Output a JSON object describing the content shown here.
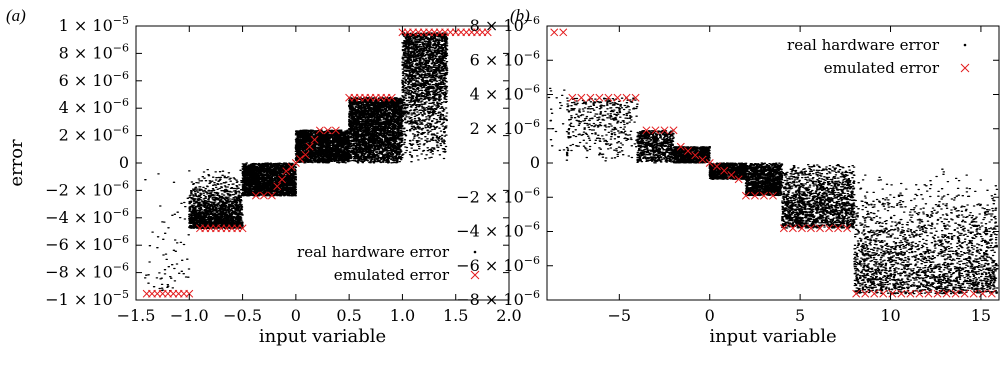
{
  "panels": [
    {
      "label": "(a)"
    },
    {
      "label": "(b)"
    }
  ],
  "chart_data": [
    {
      "type": "scatter",
      "panel": "(a)",
      "xlabel": "input variable",
      "ylabel": "error",
      "xlim": [
        -1.5,
        2.0
      ],
      "ylim": [
        -1e-05,
        1e-05
      ],
      "xticks": [
        {
          "v": -1.5,
          "label": "−1.5"
        },
        {
          "v": -1.0,
          "label": "−1.0"
        },
        {
          "v": -0.5,
          "label": "−0.5"
        },
        {
          "v": 0,
          "label": "0"
        },
        {
          "v": 0.5,
          "label": "0.5"
        },
        {
          "v": 1.0,
          "label": "1.0"
        },
        {
          "v": 1.5,
          "label": "1.5"
        },
        {
          "v": 2.0,
          "label": "2.0"
        }
      ],
      "yticks": [
        {
          "v": 1e-05,
          "mant": "1",
          "exp": "−5"
        },
        {
          "v": 8e-06,
          "mant": "8",
          "exp": "−6"
        },
        {
          "v": 6e-06,
          "mant": "6",
          "exp": "−6"
        },
        {
          "v": 4e-06,
          "mant": "4",
          "exp": "−6"
        },
        {
          "v": 2e-06,
          "mant": "2",
          "exp": "−6"
        },
        {
          "v": 0,
          "mant": "0",
          "exp": ""
        },
        {
          "v": -2e-06,
          "mant": "−2",
          "exp": "−6"
        },
        {
          "v": -4e-06,
          "mant": "−4",
          "exp": "−6"
        },
        {
          "v": -6e-06,
          "mant": "−6",
          "exp": "−6"
        },
        {
          "v": -8e-06,
          "mant": "−8",
          "exp": "−6"
        },
        {
          "v": -1e-05,
          "mant": "−1",
          "exp": "−5"
        }
      ],
      "legend": {
        "position": "bottom-right",
        "entries": [
          "real hardware error",
          "emulated error"
        ]
      },
      "series": [
        {
          "name": "real hardware error",
          "marker": "dot",
          "color": "#000000",
          "regions": [
            {
              "x": [
                -1.42,
                -1.0
              ],
              "y": [
                -9.5e-06,
                0.0
              ],
              "n": 70,
              "bias": 0.5
            },
            {
              "x": [
                -1.0,
                -0.5
              ],
              "y": [
                -4.77e-06,
                0.0
              ],
              "n": 1800,
              "bias": 0.3
            },
            {
              "x": [
                -0.5,
                0.0
              ],
              "y": [
                -2.4e-06,
                0.0
              ],
              "n": 2400,
              "bias": 0.9
            },
            {
              "x": [
                0.0,
                0.5
              ],
              "y": [
                0.0,
                2.4e-06
              ],
              "n": 2400,
              "bias": 0.9
            },
            {
              "x": [
                0.5,
                1.0
              ],
              "y": [
                0.0,
                4.77e-06
              ],
              "n": 3400,
              "bias": 0.8
            },
            {
              "x": [
                1.0,
                1.42
              ],
              "y": [
                0.0,
                9.5e-06
              ],
              "n": 2200,
              "bias": 0.5
            }
          ]
        },
        {
          "name": "emulated error",
          "marker": "x",
          "color": "#e31a1c",
          "points": [
            [
              -1.4,
              -9.54e-06
            ],
            [
              -1.35,
              -9.54e-06
            ],
            [
              -1.3,
              -9.54e-06
            ],
            [
              -1.25,
              -9.54e-06
            ],
            [
              -1.2,
              -9.54e-06
            ],
            [
              -1.15,
              -9.54e-06
            ],
            [
              -1.1,
              -9.54e-06
            ],
            [
              -1.05,
              -9.54e-06
            ],
            [
              -1.0,
              -9.54e-06
            ],
            [
              -0.9,
              -4.77e-06
            ],
            [
              -0.85,
              -4.77e-06
            ],
            [
              -0.8,
              -4.77e-06
            ],
            [
              -0.75,
              -4.77e-06
            ],
            [
              -0.7,
              -4.77e-06
            ],
            [
              -0.65,
              -4.77e-06
            ],
            [
              -0.6,
              -4.77e-06
            ],
            [
              -0.55,
              -4.77e-06
            ],
            [
              -0.5,
              -4.77e-06
            ],
            [
              -0.375,
              -2.38e-06
            ],
            [
              -0.3,
              -2.38e-06
            ],
            [
              -0.225,
              -2.38e-06
            ],
            [
              -0.175,
              -1.7e-06
            ],
            [
              -0.13,
              -1.2e-06
            ],
            [
              -0.09,
              -6e-07
            ],
            [
              -0.04,
              -3e-07
            ],
            [
              0.0,
              0.0
            ],
            [
              0.04,
              3e-07
            ],
            [
              0.09,
              6e-07
            ],
            [
              0.13,
              1.2e-06
            ],
            [
              0.175,
              1.7e-06
            ],
            [
              0.225,
              2.38e-06
            ],
            [
              0.3,
              2.38e-06
            ],
            [
              0.375,
              2.38e-06
            ],
            [
              0.5,
              4.77e-06
            ],
            [
              0.55,
              4.77e-06
            ],
            [
              0.6,
              4.77e-06
            ],
            [
              0.65,
              4.77e-06
            ],
            [
              0.7,
              4.77e-06
            ],
            [
              0.75,
              4.77e-06
            ],
            [
              0.8,
              4.77e-06
            ],
            [
              0.85,
              4.77e-06
            ],
            [
              0.9,
              4.77e-06
            ],
            [
              1.0,
              9.54e-06
            ],
            [
              1.05,
              9.54e-06
            ],
            [
              1.1,
              9.54e-06
            ],
            [
              1.15,
              9.54e-06
            ],
            [
              1.2,
              9.54e-06
            ],
            [
              1.25,
              9.54e-06
            ],
            [
              1.3,
              9.54e-06
            ],
            [
              1.35,
              9.54e-06
            ],
            [
              1.4,
              9.54e-06
            ],
            [
              1.45,
              9.54e-06
            ],
            [
              1.5,
              9.54e-06
            ],
            [
              1.55,
              9.54e-06
            ],
            [
              1.6,
              9.54e-06
            ],
            [
              1.65,
              9.54e-06
            ],
            [
              1.7,
              9.54e-06
            ],
            [
              1.75,
              9.54e-06
            ],
            [
              1.8,
              9.54e-06
            ]
          ]
        }
      ]
    },
    {
      "type": "scatter",
      "panel": "(b)",
      "xlabel": "input variable",
      "ylabel": "",
      "xlim": [
        -9,
        16
      ],
      "ylim": [
        -8e-06,
        8e-06
      ],
      "xticks": [
        {
          "v": -5,
          "label": "−5"
        },
        {
          "v": 0,
          "label": "0"
        },
        {
          "v": 5,
          "label": "5"
        },
        {
          "v": 10,
          "label": "10"
        },
        {
          "v": 15,
          "label": "15"
        }
      ],
      "yticks": [
        {
          "v": 8e-06,
          "mant": "8",
          "exp": "−6"
        },
        {
          "v": 6e-06,
          "mant": "6",
          "exp": "−6"
        },
        {
          "v": 4e-06,
          "mant": "4",
          "exp": "−6"
        },
        {
          "v": 2e-06,
          "mant": "2",
          "exp": "−6"
        },
        {
          "v": 0,
          "mant": "0",
          "exp": ""
        },
        {
          "v": -2e-06,
          "mant": "−2",
          "exp": "−6"
        },
        {
          "v": -4e-06,
          "mant": "−4",
          "exp": "−6"
        },
        {
          "v": -6e-06,
          "mant": "−6",
          "exp": "−6"
        },
        {
          "v": -8e-06,
          "mant": "−8",
          "exp": "−6"
        }
      ],
      "legend": {
        "position": "top-right",
        "entries": [
          "real hardware error",
          "emulated error"
        ]
      },
      "series": [
        {
          "name": "real hardware error",
          "marker": "dot",
          "color": "#000000",
          "regions": [
            {
              "x": [
                -8.9,
                -8.0
              ],
              "y": [
                0.0,
                4.4e-06
              ],
              "n": 20,
              "bias": 0.5
            },
            {
              "x": [
                -7.9,
                -4.0
              ],
              "y": [
                0.0,
                3.8e-06
              ],
              "n": 420,
              "bias": 0.6
            },
            {
              "x": [
                -4.0,
                -2.0
              ],
              "y": [
                0.0,
                1.9e-06
              ],
              "n": 700,
              "bias": 0.8
            },
            {
              "x": [
                -2.0,
                0.0
              ],
              "y": [
                0.0,
                9.5e-07
              ],
              "n": 1000,
              "bias": 1.0
            },
            {
              "x": [
                0.0,
                2.0
              ],
              "y": [
                -9.5e-07,
                0.0
              ],
              "n": 1000,
              "bias": 1.0
            },
            {
              "x": [
                2.0,
                4.0
              ],
              "y": [
                -1.9e-06,
                0.0
              ],
              "n": 1300,
              "bias": 0.8
            },
            {
              "x": [
                4.0,
                8.0
              ],
              "y": [
                -3.8e-06,
                0.0
              ],
              "n": 1700,
              "bias": 0.6
            },
            {
              "x": [
                8.0,
                15.9
              ],
              "y": [
                -7.63e-06,
                0.0
              ],
              "n": 2300,
              "bias": 0.4
            }
          ]
        },
        {
          "name": "emulated error",
          "marker": "x",
          "color": "#e31a1c",
          "points": [
            [
              -8.6,
              7.63e-06
            ],
            [
              -8.1,
              7.63e-06
            ],
            [
              -7.6,
              3.81e-06
            ],
            [
              -7.1,
              3.81e-06
            ],
            [
              -6.6,
              3.81e-06
            ],
            [
              -6.1,
              3.81e-06
            ],
            [
              -5.6,
              3.81e-06
            ],
            [
              -5.1,
              3.81e-06
            ],
            [
              -4.6,
              3.81e-06
            ],
            [
              -4.1,
              3.81e-06
            ],
            [
              -3.5,
              1.91e-06
            ],
            [
              -3.0,
              1.91e-06
            ],
            [
              -2.5,
              1.91e-06
            ],
            [
              -2.0,
              1.91e-06
            ],
            [
              -1.6,
              9.5e-07
            ],
            [
              -1.2,
              7e-07
            ],
            [
              -0.8,
              4.5e-07
            ],
            [
              -0.4,
              2e-07
            ],
            [
              0.0,
              0.0
            ],
            [
              0.4,
              -2e-07
            ],
            [
              0.8,
              -4.5e-07
            ],
            [
              1.2,
              -7e-07
            ],
            [
              1.6,
              -9.5e-07
            ],
            [
              2.0,
              -1.91e-06
            ],
            [
              2.5,
              -1.91e-06
            ],
            [
              3.0,
              -1.91e-06
            ],
            [
              3.5,
              -1.91e-06
            ],
            [
              4.1,
              -3.81e-06
            ],
            [
              4.6,
              -3.81e-06
            ],
            [
              5.1,
              -3.81e-06
            ],
            [
              5.6,
              -3.81e-06
            ],
            [
              6.1,
              -3.81e-06
            ],
            [
              6.6,
              -3.81e-06
            ],
            [
              7.1,
              -3.81e-06
            ],
            [
              7.6,
              -3.81e-06
            ],
            [
              8.1,
              -7.63e-06
            ],
            [
              8.6,
              -7.63e-06
            ],
            [
              9.1,
              -7.63e-06
            ],
            [
              9.6,
              -7.63e-06
            ],
            [
              10.1,
              -7.63e-06
            ],
            [
              10.6,
              -7.63e-06
            ],
            [
              11.1,
              -7.63e-06
            ],
            [
              11.6,
              -7.63e-06
            ],
            [
              12.1,
              -7.63e-06
            ],
            [
              12.6,
              -7.63e-06
            ],
            [
              13.1,
              -7.63e-06
            ],
            [
              13.6,
              -7.63e-06
            ],
            [
              14.1,
              -7.63e-06
            ],
            [
              14.6,
              -7.63e-06
            ],
            [
              15.1,
              -7.63e-06
            ],
            [
              15.6,
              -7.63e-06
            ]
          ]
        }
      ]
    }
  ]
}
